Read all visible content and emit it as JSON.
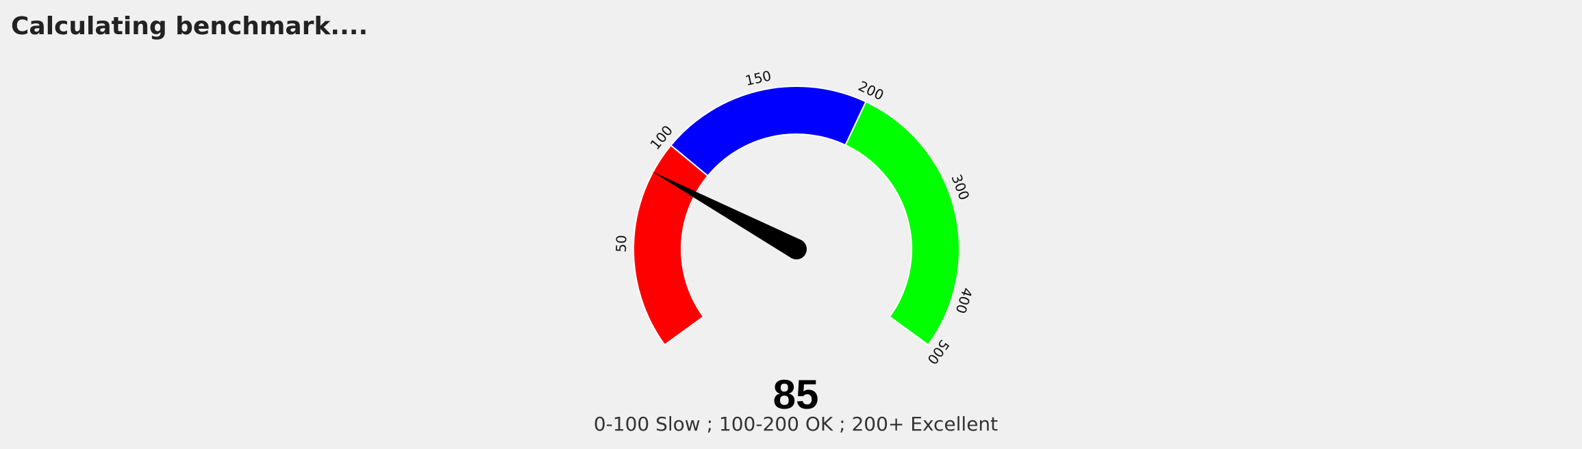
{
  "page": {
    "heading": "Calculating benchmark...."
  },
  "gauge": {
    "value": "85",
    "value_number": 85,
    "min": 0,
    "max": 500,
    "legend": "0-100 Slow ; 100-200 OK ; 200+ Excellent",
    "ticks": [
      "50",
      "100",
      "150",
      "200",
      "300",
      "400",
      "500"
    ],
    "bands": [
      {
        "from": 0,
        "to": 100,
        "color": "#ff0000"
      },
      {
        "from": 100,
        "to": 200,
        "color": "#0000ff"
      },
      {
        "from": 200,
        "to": 500,
        "color": "#00ff00"
      }
    ],
    "needle_color": "#000000"
  }
}
